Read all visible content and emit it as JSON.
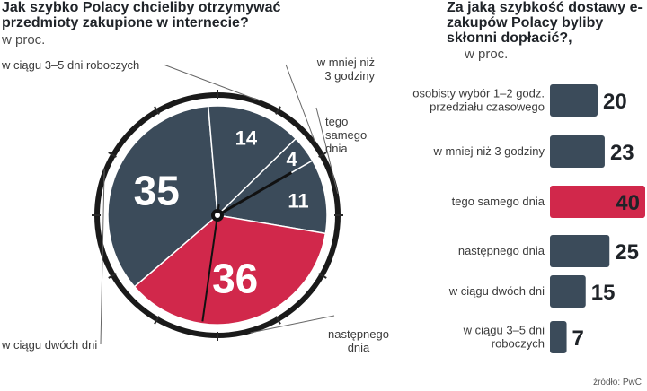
{
  "left": {
    "title": "Jak szybko Polacy chcieliby otrzymywać przedmioty zakupione w internecie?",
    "unit": "w proc."
  },
  "right": {
    "title": "Za jaką szybkość dostawy e-zakupów Polacy byliby skłonni dopłacić?,",
    "unit": "w proc."
  },
  "source": "źródło: PwC",
  "colors": {
    "dark": "#3b4b5a",
    "accent": "#d1284b",
    "clock_ring": "#1a1a1a",
    "tick": "#2a2a2a"
  },
  "chart_data": [
    {
      "type": "pie",
      "title": "Jak szybko Polacy chcieliby otrzymywać przedmioty zakupione w internecie?",
      "unit": "w proc.",
      "slices": [
        {
          "label": "tego samego dnia",
          "value": 11,
          "label_lines": [
            "tego",
            "samego",
            "dnia"
          ],
          "color": "#3b4b5a"
        },
        {
          "label": "następnego dnia",
          "value": 36,
          "label_lines": [
            "następnego",
            "dnia"
          ],
          "color": "#d1284b"
        },
        {
          "label": "w ciągu dwóch dni",
          "value": 35,
          "label_lines": [
            "w ciągu dwóch dni"
          ],
          "color": "#3b4b5a"
        },
        {
          "label": "w ciągu 3–5 dni roboczych",
          "value": 14,
          "label_lines": [
            "w ciągu 3–5 dni roboczych"
          ],
          "color": "#3b4b5a"
        },
        {
          "label": "w mniej niż 3 godziny",
          "value": 4,
          "label_lines": [
            "w mniej niż",
            "3 godziny"
          ],
          "color": "#3b4b5a"
        }
      ]
    },
    {
      "type": "bar",
      "title": "Za jaką szybkość dostawy e-zakupów Polacy byliby skłonni dopłacić?,",
      "unit": "w proc.",
      "orientation": "horizontal",
      "xlim": [
        0,
        40
      ],
      "categories": [
        {
          "label": "osobisty wybór 1–2 godz. przedziału czasowego",
          "lines": [
            "osobisty wybór 1–2 godz.",
            "przedziału czasowego"
          ]
        },
        {
          "label": "w mniej niż 3 godziny",
          "lines": [
            "w mniej niż 3 godziny"
          ]
        },
        {
          "label": "tego samego dnia",
          "lines": [
            "tego samego dnia"
          ]
        },
        {
          "label": "następnego dnia",
          "lines": [
            "następnego dnia"
          ]
        },
        {
          "label": "w ciągu dwóch dni",
          "lines": [
            "w ciągu dwóch dni"
          ]
        },
        {
          "label": "w ciągu 3–5 dni roboczych",
          "lines": [
            "w ciągu 3–5 dni",
            "roboczych"
          ]
        }
      ],
      "values": [
        20,
        23,
        40,
        25,
        15,
        7
      ],
      "highlight_index": 2
    }
  ]
}
